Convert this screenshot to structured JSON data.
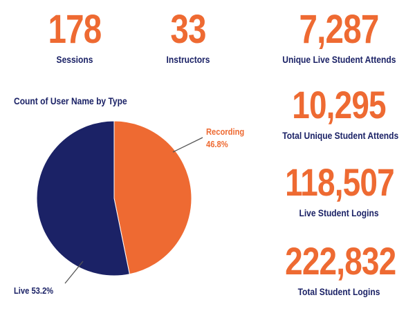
{
  "kpis": [
    {
      "value": "178",
      "label": "Sessions"
    },
    {
      "value": "33",
      "label": "Instructors"
    },
    {
      "value": "7,287",
      "label": "Unique Live Student Attends"
    },
    {
      "value": "10,295",
      "label": "Total Unique Student Attends"
    },
    {
      "value": "118,507",
      "label": "Live Student Logins"
    },
    {
      "value": "222,832",
      "label": "Total Student Logins"
    }
  ],
  "colors": {
    "accent": "#ee6a32",
    "navy": "#1b2266"
  },
  "chart_data": {
    "type": "pie",
    "title": "Count of User Name by Type",
    "slices": [
      {
        "label": "Recording",
        "value": 46.8,
        "display": "46.8%",
        "color": "#ee6a32"
      },
      {
        "label": "Live",
        "value": 53.2,
        "display": "53.2%",
        "color": "#1b2266"
      }
    ]
  }
}
